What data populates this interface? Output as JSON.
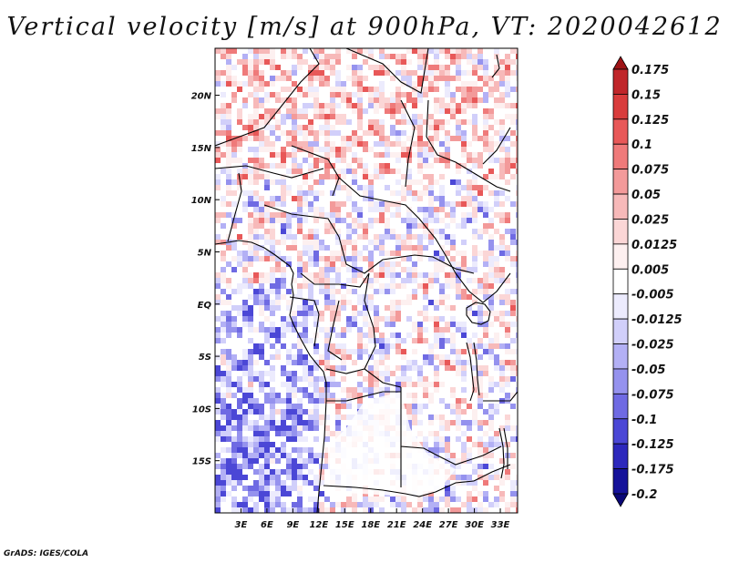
{
  "title": "Vertical velocity [m/s] at 900hPa, VT: 2020042612",
  "credit": "GrADS: IGES/COLA",
  "axes": {
    "x_labels": [
      "3E",
      "6E",
      "9E",
      "12E",
      "15E",
      "18E",
      "21E",
      "24E",
      "27E",
      "30E",
      "33E"
    ],
    "y_labels": [
      "20N",
      "15N",
      "10N",
      "5N",
      "EQ",
      "5S",
      "10S",
      "15S"
    ]
  },
  "colorbar": {
    "levels": [
      "0.175",
      "0.15",
      "0.125",
      "0.1",
      "0.075",
      "0.05",
      "0.025",
      "0.0125",
      "0.005",
      "-0.005",
      "-0.0125",
      "-0.025",
      "-0.05",
      "-0.075",
      "-0.1",
      "-0.125",
      "-0.175",
      "-0.2"
    ],
    "colors": [
      "#9e1316",
      "#c0262a",
      "#d93c3c",
      "#e85858",
      "#ef7a7a",
      "#f39a9a",
      "#f7b9b9",
      "#fbd6d6",
      "#fdf0f0",
      "#ffffff",
      "#ecebfd",
      "#d1cffa",
      "#b3b0f5",
      "#9592ee",
      "#6f6ae3",
      "#4b47d6",
      "#2d28bc",
      "#15129a",
      "#0a0777"
    ]
  },
  "chart_data": {
    "type": "heatmap",
    "title": "Vertical velocity [m/s] at 900hPa, VT: 2020042612",
    "variable": "Vertical velocity",
    "units": "m/s",
    "level": "900hPa",
    "valid_time": "2020042612",
    "x_ticks": [
      "3E",
      "6E",
      "9E",
      "12E",
      "15E",
      "18E",
      "21E",
      "24E",
      "27E",
      "30E",
      "33E"
    ],
    "y_ticks": [
      "20N",
      "15N",
      "10N",
      "5N",
      "EQ",
      "5S",
      "10S",
      "15S"
    ],
    "lon_range": [
      0,
      35
    ],
    "lat_range": [
      -20,
      24.5
    ],
    "contour_levels": [
      -0.2,
      -0.175,
      -0.125,
      -0.1,
      -0.075,
      -0.05,
      -0.025,
      -0.0125,
      -0.005,
      0.005,
      0.0125,
      0.025,
      0.05,
      0.075,
      0.1,
      0.125,
      0.15,
      0.175
    ]
  }
}
